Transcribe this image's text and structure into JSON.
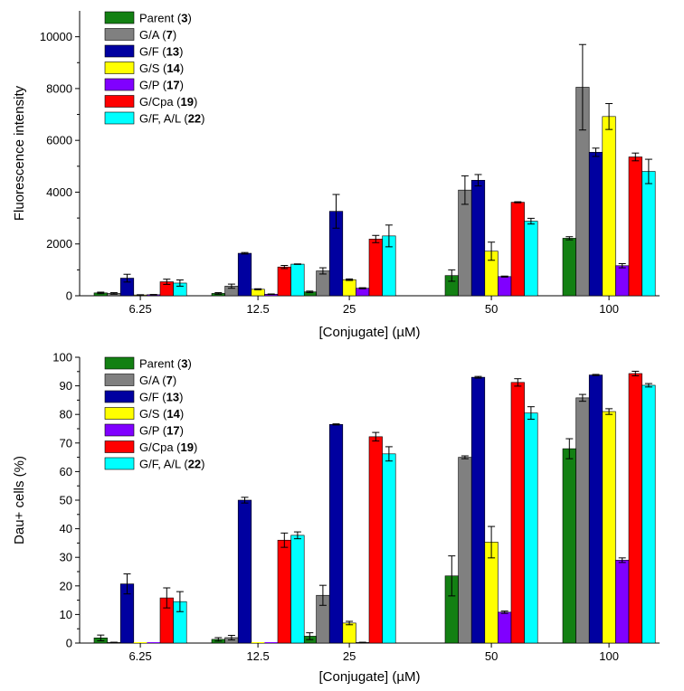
{
  "chart_data": [
    {
      "type": "bar",
      "title": "",
      "xlabel": "[Conjugate] (µM)",
      "ylabel": "Fluorescence intensity",
      "ylim": [
        0,
        11000
      ],
      "yticks": [
        0,
        2000,
        4000,
        6000,
        8000,
        10000
      ],
      "categories": [
        "6.25",
        "12.5",
        "25",
        "50",
        "100"
      ],
      "legend_position": "top-left",
      "series": [
        {
          "name": "Parent",
          "num": "3",
          "color": "#138013",
          "values": [
            110,
            90,
            150,
            780,
            2220
          ],
          "errors": [
            30,
            30,
            30,
            220,
            60
          ]
        },
        {
          "name": "G/A",
          "num": "7",
          "color": "#808080",
          "values": [
            90,
            370,
            960,
            4080,
            8050
          ],
          "errors": [
            30,
            80,
            120,
            550,
            1650
          ]
        },
        {
          "name": "G/F",
          "num": "13",
          "color": "#0000a0",
          "values": [
            680,
            1640,
            3260,
            4460,
            5540
          ],
          "errors": [
            150,
            30,
            650,
            220,
            160
          ]
        },
        {
          "name": "G/S",
          "num": "14",
          "color": "#ffff00",
          "values": [
            30,
            250,
            620,
            1720,
            6920
          ],
          "errors": [
            10,
            20,
            30,
            350,
            500
          ]
        },
        {
          "name": "G/P",
          "num": "17",
          "color": "#8000ff",
          "values": [
            40,
            60,
            290,
            740,
            1160
          ],
          "errors": [
            10,
            10,
            20,
            20,
            80
          ]
        },
        {
          "name": "G/Cpa",
          "num": "19",
          "color": "#ff0000",
          "values": [
            540,
            1110,
            2190,
            3610,
            5360
          ],
          "errors": [
            100,
            60,
            140,
            20,
            150
          ]
        },
        {
          "name": "G/F, A/L",
          "num": "22",
          "color": "#00ffff",
          "values": [
            490,
            1220,
            2310,
            2880,
            4800
          ],
          "errors": [
            120,
            10,
            420,
            110,
            470
          ]
        }
      ]
    },
    {
      "type": "bar",
      "title": "",
      "xlabel": "[Conjugate] (µM)",
      "ylabel": "Dau+ cells (%)",
      "ylim": [
        0,
        100
      ],
      "yticks": [
        0,
        10,
        20,
        30,
        40,
        50,
        60,
        70,
        80,
        90,
        100
      ],
      "categories": [
        "6.25",
        "12.5",
        "25",
        "50",
        "100"
      ],
      "legend_position": "top-left",
      "series": [
        {
          "name": "Parent",
          "num": "3",
          "color": "#138013",
          "values": [
            1.8,
            1.3,
            2.4,
            23.5,
            68.0
          ],
          "errors": [
            1.0,
            0.6,
            1.2,
            7.0,
            3.5
          ]
        },
        {
          "name": "G/A",
          "num": "7",
          "color": "#808080",
          "values": [
            0.2,
            1.9,
            16.7,
            65.0,
            85.8
          ],
          "errors": [
            0.1,
            0.8,
            3.5,
            0.5,
            1.2
          ]
        },
        {
          "name": "G/F",
          "num": "13",
          "color": "#0000a0",
          "values": [
            20.7,
            50.0,
            76.5,
            93.0,
            93.8
          ],
          "errors": [
            3.5,
            1.0,
            0.2,
            0.3,
            0.2
          ]
        },
        {
          "name": "G/S",
          "num": "14",
          "color": "#ffff00",
          "values": [
            0,
            0,
            7.0,
            35.3,
            81.0
          ],
          "errors": [
            0,
            0,
            0.6,
            5.5,
            1.0
          ]
        },
        {
          "name": "G/P",
          "num": "17",
          "color": "#8000ff",
          "values": [
            0,
            0,
            0.2,
            10.8,
            29.0
          ],
          "errors": [
            0,
            0,
            0.1,
            0.4,
            0.8
          ]
        },
        {
          "name": "G/Cpa",
          "num": "19",
          "color": "#ff0000",
          "values": [
            15.8,
            36.0,
            72.2,
            91.2,
            94.3
          ],
          "errors": [
            3.5,
            2.5,
            1.5,
            1.3,
            0.8
          ]
        },
        {
          "name": "G/F, A/L",
          "num": "22",
          "color": "#00ffff",
          "values": [
            14.5,
            37.7,
            66.2,
            80.5,
            90.2
          ],
          "errors": [
            3.5,
            1.2,
            2.5,
            2.2,
            0.6
          ]
        }
      ]
    }
  ]
}
